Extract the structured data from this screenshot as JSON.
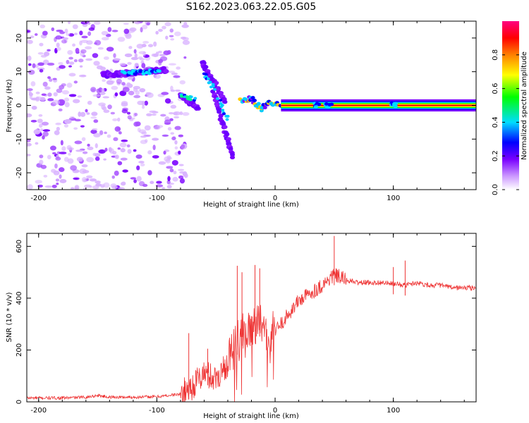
{
  "title": "S162.2023.063.22.05.G05",
  "colors": {
    "snr_line": "#ee3333",
    "axis": "#000000"
  },
  "chart_data": [
    {
      "type": "heatmap",
      "xlabel": "Height of straight line (km)",
      "ylabel": "Frequency (Hz)",
      "xlim": [
        -210,
        170
      ],
      "ylim": [
        -25,
        25
      ],
      "xticks": [
        -200,
        -100,
        0,
        100
      ],
      "yticks": [
        -20,
        -10,
        0,
        10,
        20
      ],
      "colorbar": {
        "label": "Normalized spectral amplitude",
        "range": [
          0,
          1
        ],
        "ticks": [
          0.0,
          0.2,
          0.4,
          0.6,
          0.8
        ],
        "colormap": [
          "#ffffff",
          "#8a00ff",
          "#0000ff",
          "#00e5ff",
          "#00ff00",
          "#ffff00",
          "#ff8000",
          "#ff0000",
          "#ff0080"
        ]
      },
      "features": {
        "noise_region_x": [
          -210,
          -85
        ],
        "upper_branch": [
          [
            -140,
            9
          ],
          [
            -110,
            10
          ],
          [
            -100,
            10
          ]
        ],
        "descending_streaks": [
          [
            [
              -62,
              13
            ],
            [
              -42,
              1
            ]
          ],
          [
            [
              -52,
              4
            ],
            [
              -36,
              -15
            ]
          ],
          [
            [
              -80,
              3
            ],
            [
              -65,
              -1
            ]
          ]
        ],
        "steady_line": {
          "x": [
            5,
            170
          ],
          "freq": 0,
          "amplitude": 0.95
        },
        "steady_line_wobble": [
          [
            -30,
            1.5
          ],
          [
            -20,
            2
          ],
          [
            -12,
            -1
          ],
          [
            -5,
            1
          ],
          [
            5,
            0
          ]
        ]
      }
    },
    {
      "type": "line",
      "xlabel": "Height of straight line (km)",
      "ylabel": "SNR (10 * v/v)",
      "xlim": [
        -210,
        170
      ],
      "ylim": [
        0,
        650
      ],
      "xticks": [
        -200,
        -100,
        0,
        100
      ],
      "yticks": [
        0,
        200,
        400,
        600
      ],
      "series": [
        {
          "x": [
            -210,
            -180,
            -160,
            -150,
            -140,
            -120,
            -100,
            -90,
            -80,
            -70,
            -60,
            -50,
            -40,
            -30,
            -25,
            -20,
            -15,
            -10,
            -5,
            0,
            10,
            20,
            30,
            40,
            50,
            60,
            70,
            80,
            90,
            100,
            110,
            120,
            130,
            140,
            150,
            160,
            170
          ],
          "values": [
            15,
            15,
            18,
            25,
            18,
            18,
            20,
            25,
            30,
            60,
            110,
            90,
            150,
            240,
            280,
            300,
            320,
            250,
            240,
            270,
            330,
            390,
            420,
            450,
            490,
            470,
            460,
            460,
            460,
            455,
            450,
            460,
            450,
            450,
            440,
            440,
            440
          ]
        }
      ],
      "annotations_peaks": [
        [
          -73,
          265
        ],
        [
          -57,
          205
        ],
        [
          -32,
          525
        ],
        [
          -28,
          500
        ],
        [
          -17,
          528
        ],
        [
          -13,
          515
        ],
        [
          50,
          640
        ],
        [
          100,
          520
        ],
        [
          110,
          545
        ]
      ]
    }
  ]
}
